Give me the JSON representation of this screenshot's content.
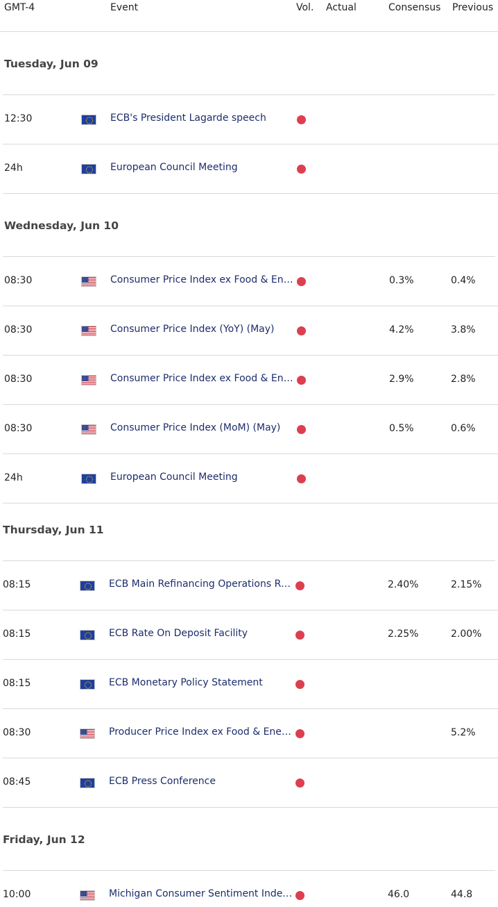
{
  "header": {
    "timezone": "GMT-4",
    "event": "Event",
    "vol": "Vol.",
    "actual": "Actual",
    "consensus": "Consensus",
    "previous": "Previous"
  },
  "colors": {
    "high_volatility": "#dc3f4e",
    "event_text": "#1c2d6b",
    "divider": "#d9d9d9"
  },
  "days": [
    {
      "label": "Tuesday, Jun 09",
      "events": [
        {
          "time": "12:30",
          "flag": "eu-flag-icon",
          "name": "ECB's President Lagarde speech",
          "volatility": "high",
          "actual": "",
          "consensus": "",
          "previous": ""
        },
        {
          "time": "24h",
          "flag": "eu-flag-icon",
          "name": "European Council Meeting",
          "volatility": "high",
          "actual": "",
          "consensus": "",
          "previous": ""
        }
      ]
    },
    {
      "label": "Wednesday, Jun 10",
      "events": [
        {
          "time": "08:30",
          "flag": "us-flag-icon",
          "name": "Consumer Price Index ex Food & Ener…",
          "volatility": "high",
          "actual": "",
          "consensus": "0.3%",
          "previous": "0.4%"
        },
        {
          "time": "08:30",
          "flag": "us-flag-icon",
          "name": "Consumer Price Index (YoY) (May)",
          "volatility": "high",
          "actual": "",
          "consensus": "4.2%",
          "previous": "3.8%"
        },
        {
          "time": "08:30",
          "flag": "us-flag-icon",
          "name": "Consumer Price Index ex Food & Ener…",
          "volatility": "high",
          "actual": "",
          "consensus": "2.9%",
          "previous": "2.8%"
        },
        {
          "time": "08:30",
          "flag": "us-flag-icon",
          "name": "Consumer Price Index (MoM) (May)",
          "volatility": "high",
          "actual": "",
          "consensus": "0.5%",
          "previous": "0.6%"
        },
        {
          "time": "24h",
          "flag": "eu-flag-icon",
          "name": "European Council Meeting",
          "volatility": "high",
          "actual": "",
          "consensus": "",
          "previous": ""
        }
      ]
    },
    {
      "label": "Thursday, Jun 11",
      "events": [
        {
          "time": "08:15",
          "flag": "eu-flag-icon",
          "name": "ECB Main Refinancing Operations Rate",
          "volatility": "high",
          "actual": "",
          "consensus": "2.40%",
          "previous": "2.15%"
        },
        {
          "time": "08:15",
          "flag": "eu-flag-icon",
          "name": "ECB Rate On Deposit Facility",
          "volatility": "high",
          "actual": "",
          "consensus": "2.25%",
          "previous": "2.00%"
        },
        {
          "time": "08:15",
          "flag": "eu-flag-icon",
          "name": "ECB Monetary Policy Statement",
          "volatility": "high",
          "actual": "",
          "consensus": "",
          "previous": ""
        },
        {
          "time": "08:30",
          "flag": "us-flag-icon",
          "name": "Producer Price Index ex Food & Energ…",
          "volatility": "high",
          "actual": "",
          "consensus": "",
          "previous": "5.2%"
        },
        {
          "time": "08:45",
          "flag": "eu-flag-icon",
          "name": "ECB Press Conference",
          "volatility": "high",
          "actual": "",
          "consensus": "",
          "previous": ""
        }
      ]
    },
    {
      "label": "Friday, Jun 12",
      "events": [
        {
          "time": "10:00",
          "flag": "us-flag-icon",
          "name": "Michigan Consumer Sentiment Index…",
          "volatility": "high",
          "actual": "",
          "consensus": "46.0",
          "previous": "44.8"
        }
      ]
    }
  ]
}
